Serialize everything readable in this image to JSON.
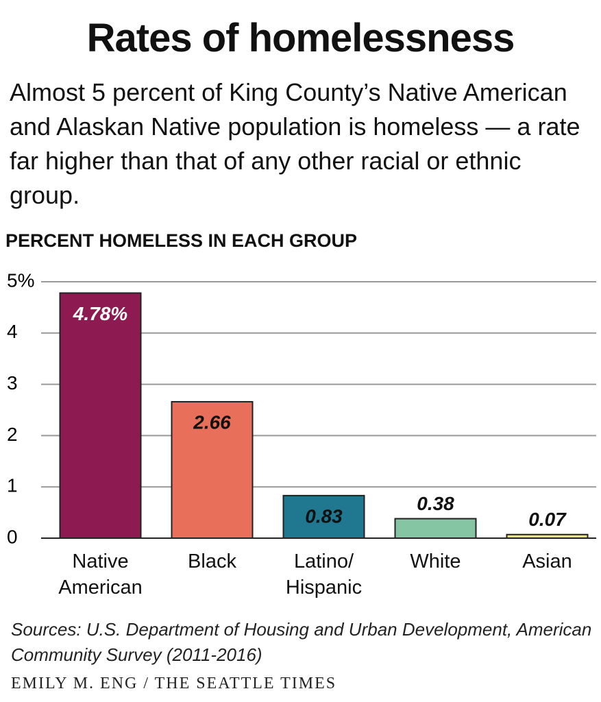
{
  "chart_data": {
    "type": "bar",
    "title": "Rates of homelessness",
    "subtitle": "Almost 5 percent of King County’s Native American and Alaskan Native population is homeless — a rate far higher than that of any other racial or ethnic group.",
    "y_label": "PERCENT HOMELESS IN EACH GROUP",
    "categories": [
      "Native\nAmerican",
      "Black",
      "Latino/\nHispanic",
      "White",
      "Asian"
    ],
    "values": [
      4.78,
      2.66,
      0.83,
      0.38,
      0.07
    ],
    "value_labels": [
      "4.78%",
      "2.66",
      "0.83",
      "0.38",
      "0.07"
    ],
    "colors": [
      "#8e1a52",
      "#e8705a",
      "#1f7790",
      "#86c5a4",
      "#f5e97e"
    ],
    "ylim": [
      0,
      5
    ],
    "yticks": [
      0,
      1,
      2,
      3,
      4,
      {
        "value": 5,
        "label": "5%"
      }
    ],
    "grid": true,
    "source": "Sources: U.S. Department of Housing and Urban Development, American Community Survey (2011-2016)",
    "credit": "Emily M. Eng / The Seattle Times"
  }
}
